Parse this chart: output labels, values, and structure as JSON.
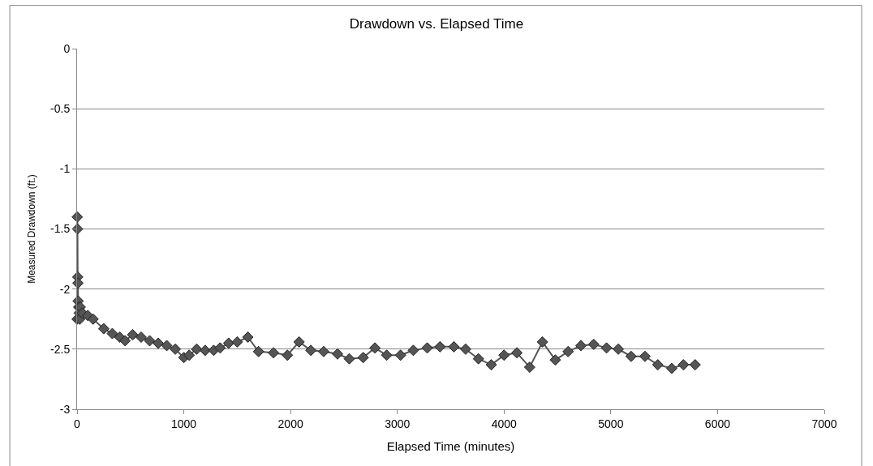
{
  "chart_data": {
    "type": "line",
    "title": "Drawdown vs. Elapsed Time",
    "xlabel": "Elapsed Time (minutes)",
    "ylabel": "Measured Drawdown (ft.)",
    "x": [
      0,
      2,
      4,
      6,
      8,
      10,
      15,
      20,
      25,
      30,
      50,
      100,
      150,
      250,
      330,
      400,
      450,
      520,
      600,
      680,
      760,
      840,
      920,
      1000,
      1050,
      1120,
      1200,
      1280,
      1340,
      1420,
      1500,
      1600,
      1700,
      1840,
      1970,
      2080,
      2190,
      2310,
      2440,
      2550,
      2680,
      2790,
      2900,
      3030,
      3150,
      3280,
      3400,
      3530,
      3640,
      3760,
      3880,
      4000,
      4120,
      4240,
      4360,
      4480,
      4600,
      4720,
      4840,
      4960,
      5070,
      5190,
      5320,
      5440,
      5570,
      5680,
      5790
    ],
    "series": [
      {
        "color": "#555555",
        "values": [
          -2.25,
          -1.4,
          -1.5,
          -1.9,
          -1.95,
          -2.1,
          -2.15,
          -2.2,
          -2.25,
          -2.15,
          -2.2,
          -2.22,
          -2.25,
          -2.33,
          -2.37,
          -2.4,
          -2.43,
          -2.38,
          -2.4,
          -2.43,
          -2.45,
          -2.47,
          -2.5,
          -2.57,
          -2.55,
          -2.5,
          -2.51,
          -2.51,
          -2.49,
          -2.45,
          -2.44,
          -2.4,
          -2.52,
          -2.53,
          -2.55,
          -2.44,
          -2.51,
          -2.52,
          -2.54,
          -2.58,
          -2.57,
          -2.49,
          -2.55,
          -2.55,
          -2.51,
          -2.49,
          -2.48,
          -2.48,
          -2.5,
          -2.58,
          -2.63,
          -2.55,
          -2.53,
          -2.65,
          -2.44,
          -2.59,
          -2.52,
          -2.47,
          -2.46,
          -2.49,
          -2.5,
          -2.56,
          -2.56,
          -2.63,
          -2.66,
          -2.63,
          -2.63
        ]
      }
    ],
    "xlim": [
      0,
      7000
    ],
    "xticks": [
      0,
      1000,
      2000,
      3000,
      4000,
      5000,
      6000,
      7000
    ],
    "ylim": [
      -3,
      0
    ],
    "yticks": [
      -3,
      -2.5,
      -2,
      -1.5,
      -1,
      -0.5,
      0
    ],
    "grid": "y",
    "marker": "diamond",
    "line_style": "solid"
  }
}
